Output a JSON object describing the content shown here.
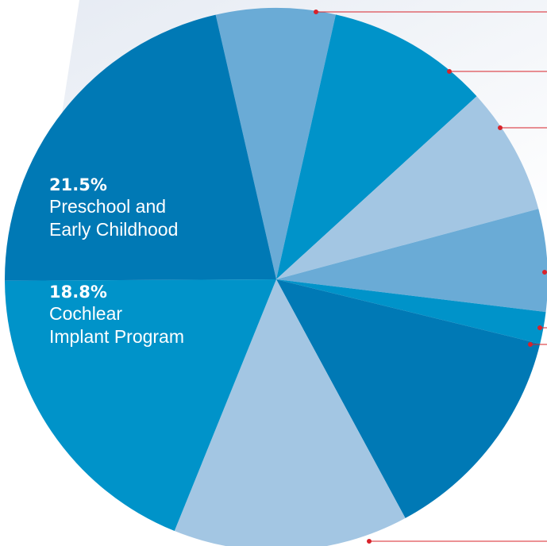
{
  "chart_data": {
    "type": "pie",
    "categories": [
      null,
      null,
      null,
      null,
      null,
      null,
      null,
      "Cochlear\nImplant Program",
      "Preschool and\nEarly Childhood"
    ],
    "values": [
      7.1,
      9.7,
      7.6,
      6.1,
      1.9,
      13.3,
      14.0,
      18.8,
      21.5
    ],
    "value_labels": [
      null,
      null,
      null,
      null,
      null,
      null,
      null,
      "18.8%",
      "21.5%"
    ],
    "colors": [
      "#6aabd6",
      "#0093c9",
      "#a3c6e3",
      "#6aabd6",
      "#0093c9",
      "#0079b5",
      "#a3c6e3",
      "#0093c9",
      "#0079b5"
    ]
  }
}
